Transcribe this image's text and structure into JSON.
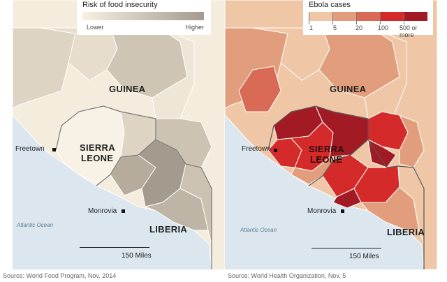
{
  "food_map": {
    "legend_title": "Risk of food insecurity",
    "legend_low": "Lower",
    "legend_high": "Higher",
    "labels": {
      "guinea": "GUINEA",
      "sierra_leone_1": "SIERRA",
      "sierra_leone_2": "LEONE",
      "liberia": "LIBERIA"
    },
    "cities": {
      "freetown": "Freetown",
      "monrovia": "Monrovia"
    },
    "ocean": "Atlantic Ocean",
    "scale": "150 Miles",
    "source": "Source: World Food Program, Nov. 2014",
    "colors": {
      "ocean": "#dbe6ee",
      "lowest": "#f7f0e2",
      "highest": "#a39b8e"
    }
  },
  "ebola_map": {
    "legend_title": "Ebola cases",
    "bins": [
      "1",
      "5",
      "20",
      "100",
      "500 or more"
    ],
    "bin_colors": [
      "#efc7a6",
      "#e29d7c",
      "#d96a55",
      "#d42a2a",
      "#a21b24"
    ],
    "labels": {
      "guinea": "GUINEA",
      "sierra_leone_1": "SIERRA",
      "sierra_leone_2": "LEONE",
      "liberia": "LIBERIA"
    },
    "cities": {
      "freetown": "Freetown",
      "monrovia": "Monrovia"
    },
    "ocean": "Atlantic Ocean",
    "scale": "150 Miles",
    "source": "Source: World Health Organization, Nov. 5",
    "colors": {
      "ocean": "#dbe6ee"
    }
  }
}
